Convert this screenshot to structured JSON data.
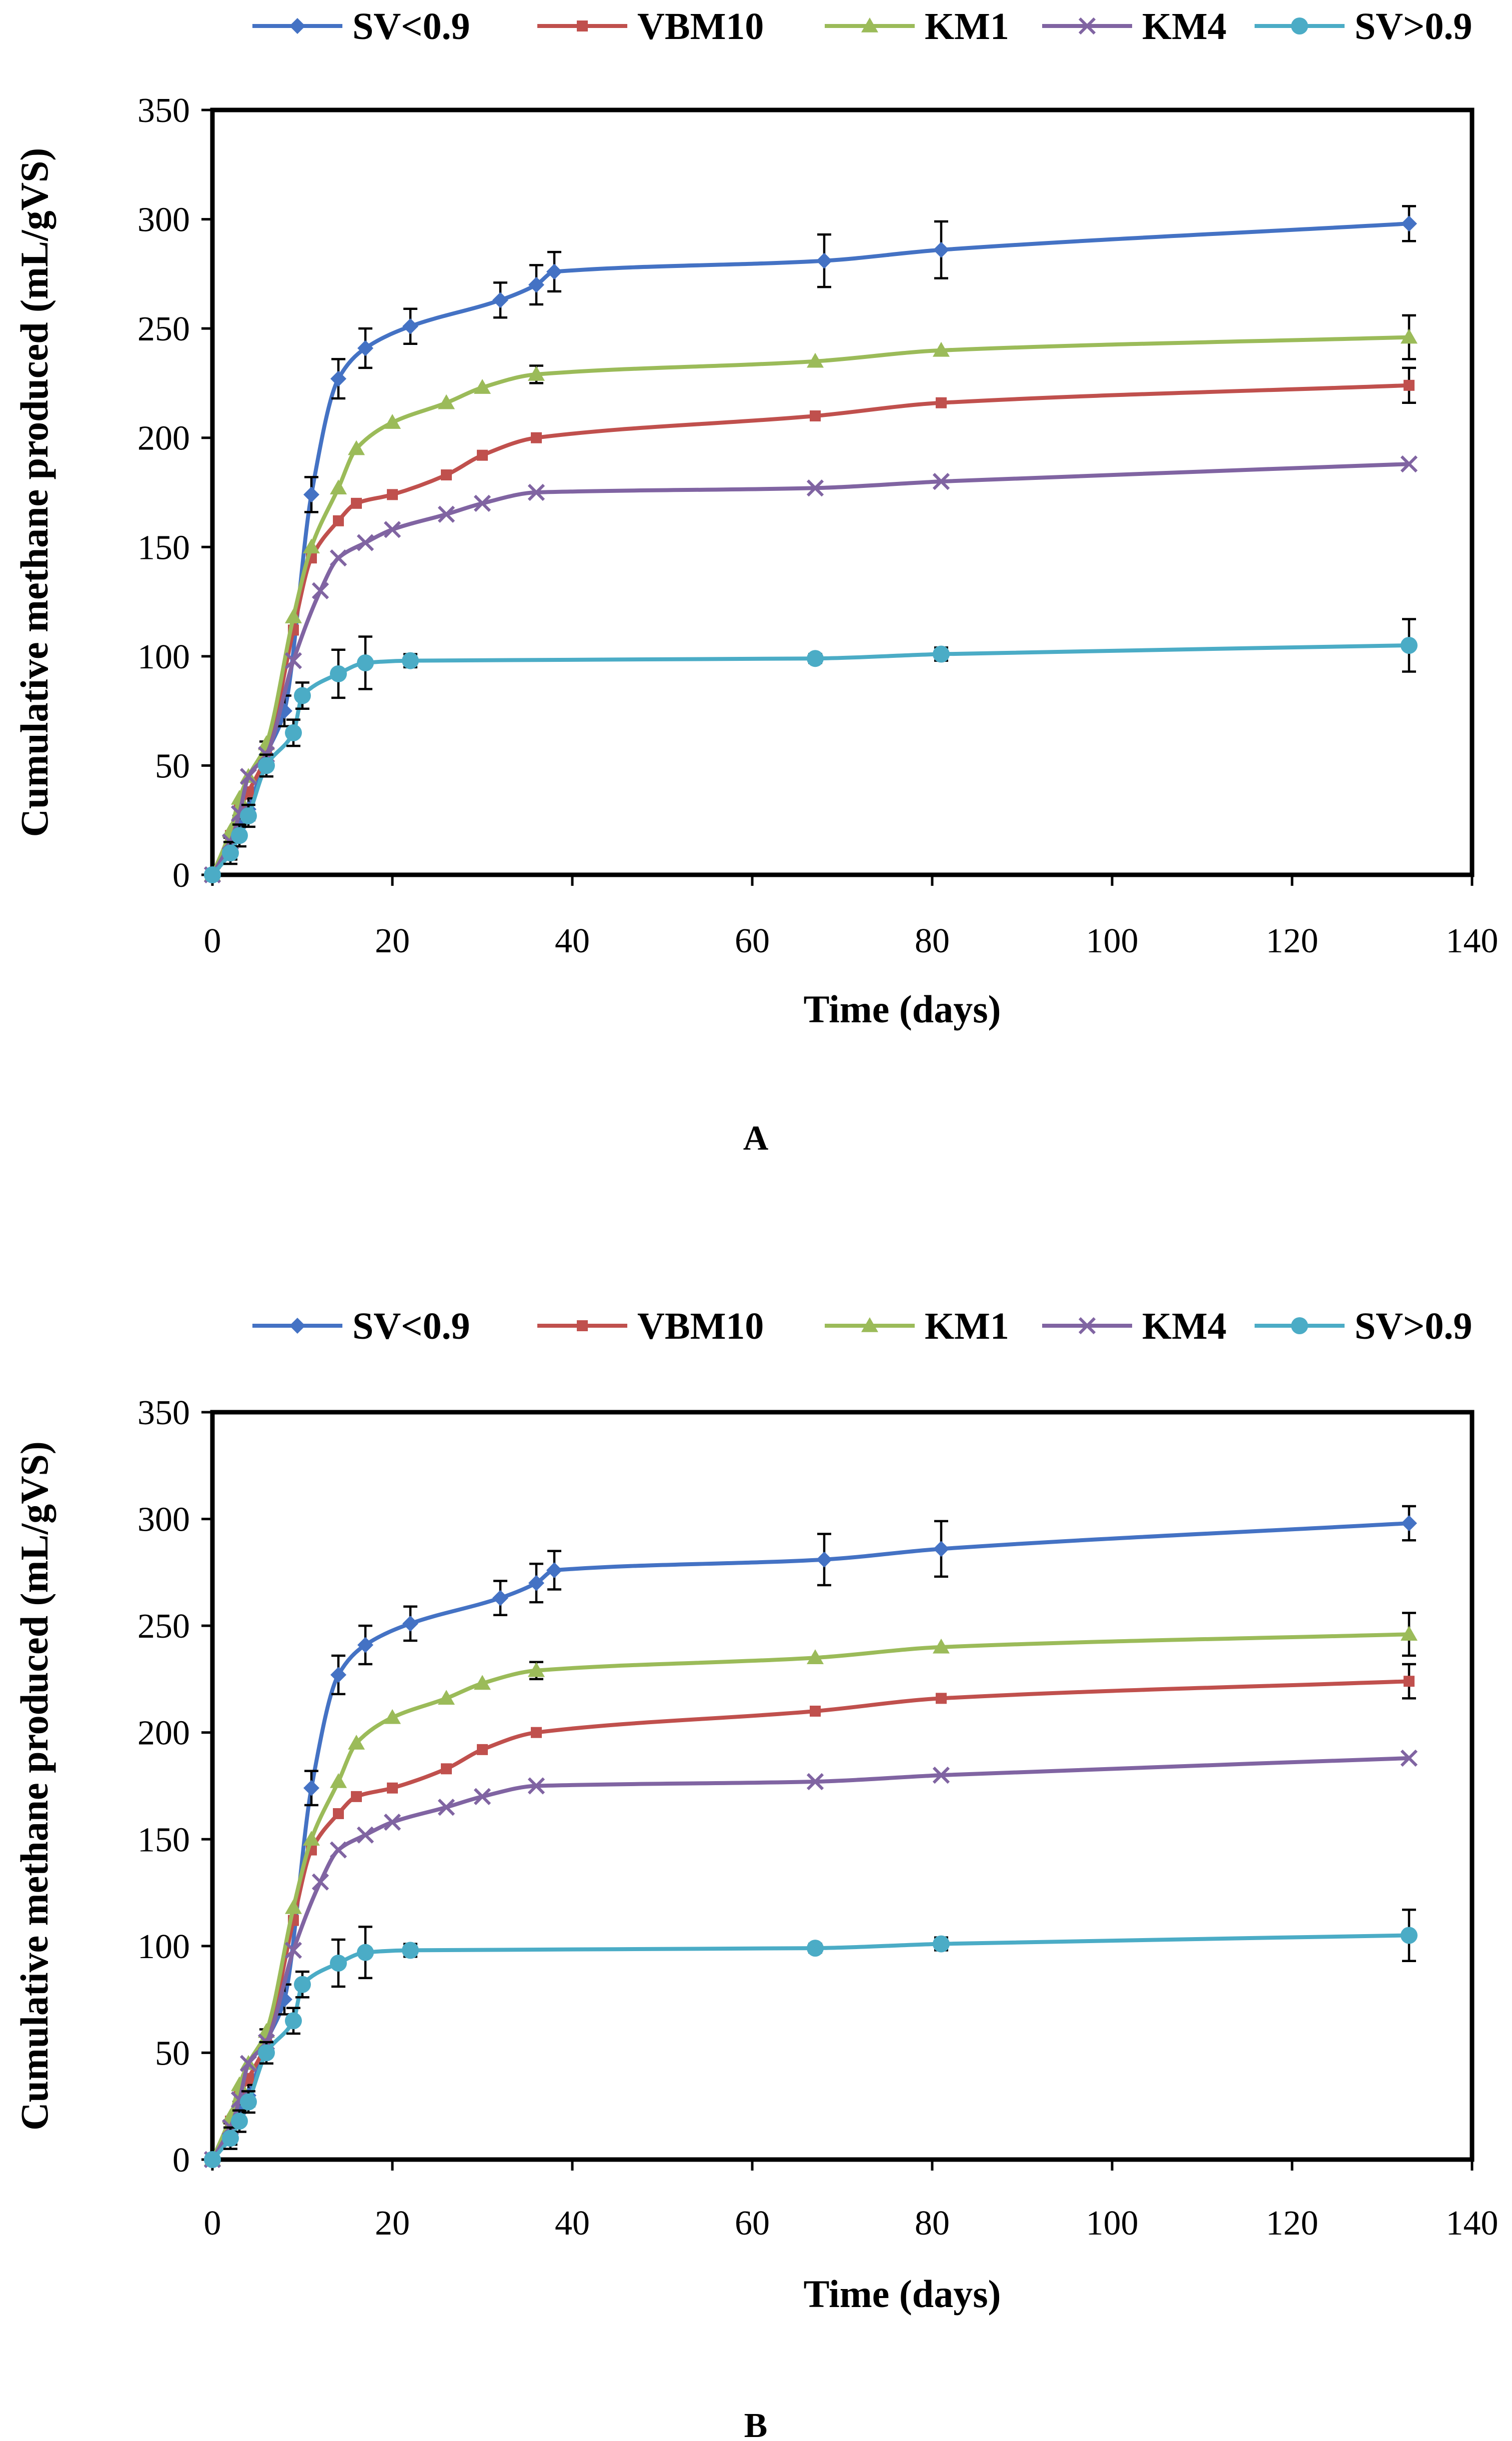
{
  "chart_data": [
    {
      "type": "line",
      "panel_label": "A",
      "title": "",
      "xlabel": "Time (days)",
      "ylabel": "Cumulative methane produced (mL/gVS)",
      "xlim": [
        0,
        140
      ],
      "ylim": [
        0,
        350
      ],
      "xticks": [
        0,
        20,
        40,
        60,
        80,
        100,
        120,
        140
      ],
      "yticks": [
        0,
        50,
        100,
        150,
        200,
        250,
        300,
        350
      ],
      "grid": false,
      "legend_position": "top",
      "series": [
        {
          "name": "SV<0.9",
          "color": "#4472C4",
          "marker": "diamond",
          "x": [
            0,
            2,
            3,
            4,
            6,
            8,
            11,
            14,
            17,
            22,
            32,
            36,
            38,
            68,
            81,
            133
          ],
          "y": [
            0,
            12,
            22,
            30,
            55,
            75,
            174,
            227,
            241,
            251,
            263,
            270,
            276,
            281,
            286,
            298
          ],
          "err": [
            0,
            5,
            5,
            5,
            6,
            7,
            8,
            9,
            9,
            8,
            8,
            9,
            9,
            12,
            13,
            8
          ]
        },
        {
          "name": "VBM10",
          "color": "#C0504D",
          "marker": "square",
          "x": [
            0,
            2,
            3,
            4,
            6,
            9,
            11,
            14,
            16,
            20,
            26,
            30,
            36,
            67,
            81,
            133
          ],
          "y": [
            0,
            18,
            30,
            38,
            55,
            112,
            145,
            162,
            170,
            174,
            183,
            192,
            200,
            210,
            216,
            224
          ],
          "err": [
            0,
            0,
            0,
            0,
            0,
            0,
            0,
            0,
            0,
            0,
            0,
            0,
            0,
            0,
            0,
            8
          ]
        },
        {
          "name": "KM1",
          "color": "#9BBB59",
          "marker": "triangle",
          "x": [
            0,
            2,
            3,
            4,
            6,
            9,
            11,
            14,
            16,
            20,
            26,
            30,
            36,
            67,
            81,
            133
          ],
          "y": [
            0,
            20,
            35,
            45,
            60,
            118,
            150,
            177,
            195,
            207,
            216,
            223,
            229,
            235,
            240,
            246
          ],
          "err": [
            0,
            0,
            0,
            0,
            0,
            0,
            0,
            0,
            0,
            0,
            0,
            0,
            4,
            0,
            0,
            10
          ]
        },
        {
          "name": "KM4",
          "color": "#8064A2",
          "marker": "x",
          "x": [
            0,
            2,
            3,
            4,
            6,
            9,
            12,
            14,
            17,
            20,
            26,
            30,
            36,
            67,
            81,
            133
          ],
          "y": [
            0,
            15,
            28,
            45,
            55,
            98,
            130,
            145,
            152,
            158,
            165,
            170,
            175,
            177,
            180,
            188
          ],
          "err": [
            0,
            0,
            0,
            0,
            0,
            0,
            0,
            0,
            0,
            0,
            0,
            0,
            0,
            0,
            0,
            0
          ]
        },
        {
          "name": "SV>0.9",
          "color": "#4BACC6",
          "marker": "circle",
          "x": [
            0,
            2,
            3,
            4,
            6,
            9,
            10,
            14,
            17,
            22,
            67,
            81,
            133
          ],
          "y": [
            0,
            10,
            18,
            27,
            50,
            65,
            82,
            92,
            97,
            98,
            99,
            101,
            105
          ],
          "err": [
            0,
            5,
            5,
            5,
            5,
            6,
            6,
            11,
            12,
            3,
            2,
            3,
            12
          ]
        }
      ]
    },
    {
      "type": "line",
      "panel_label": "B",
      "title": "",
      "xlabel": "Time (days)",
      "ylabel": "Cumulative methane produced (mL/gVS)",
      "xlim": [
        0,
        140
      ],
      "ylim": [
        0,
        350
      ],
      "xticks": [
        0,
        20,
        40,
        60,
        80,
        100,
        120,
        140
      ],
      "yticks": [
        0,
        50,
        100,
        150,
        200,
        250,
        300,
        350
      ],
      "grid": false,
      "legend_position": "top",
      "series": [
        {
          "name": "SV<0.9",
          "color": "#4472C4",
          "marker": "diamond",
          "x": [
            0,
            2,
            3,
            4,
            6,
            8,
            11,
            14,
            17,
            22,
            32,
            36,
            38,
            68,
            81,
            133
          ],
          "y": [
            0,
            12,
            22,
            30,
            55,
            75,
            174,
            227,
            241,
            251,
            263,
            270,
            276,
            281,
            286,
            298
          ],
          "err": [
            0,
            5,
            5,
            5,
            6,
            7,
            8,
            9,
            9,
            8,
            8,
            9,
            9,
            12,
            13,
            8
          ]
        },
        {
          "name": "VBM10",
          "color": "#C0504D",
          "marker": "square",
          "x": [
            0,
            2,
            3,
            4,
            6,
            9,
            11,
            14,
            16,
            20,
            26,
            30,
            36,
            67,
            81,
            133
          ],
          "y": [
            0,
            18,
            30,
            38,
            55,
            112,
            145,
            162,
            170,
            174,
            183,
            192,
            200,
            210,
            216,
            224
          ],
          "err": [
            0,
            0,
            0,
            0,
            0,
            0,
            0,
            0,
            0,
            0,
            0,
            0,
            0,
            0,
            0,
            8
          ]
        },
        {
          "name": "KM1",
          "color": "#9BBB59",
          "marker": "triangle",
          "x": [
            0,
            2,
            3,
            4,
            6,
            9,
            11,
            14,
            16,
            20,
            26,
            30,
            36,
            67,
            81,
            133
          ],
          "y": [
            0,
            20,
            35,
            45,
            60,
            118,
            150,
            177,
            195,
            207,
            216,
            223,
            229,
            235,
            240,
            246
          ],
          "err": [
            0,
            0,
            0,
            0,
            0,
            0,
            0,
            0,
            0,
            0,
            0,
            0,
            4,
            0,
            0,
            10
          ]
        },
        {
          "name": "KM4",
          "color": "#8064A2",
          "marker": "x",
          "x": [
            0,
            2,
            3,
            4,
            6,
            9,
            12,
            14,
            17,
            20,
            26,
            30,
            36,
            67,
            81,
            133
          ],
          "y": [
            0,
            15,
            28,
            45,
            55,
            98,
            130,
            145,
            152,
            158,
            165,
            170,
            175,
            177,
            180,
            188
          ],
          "err": [
            0,
            0,
            0,
            0,
            0,
            0,
            0,
            0,
            0,
            0,
            0,
            0,
            0,
            0,
            0,
            0
          ]
        },
        {
          "name": "SV>0.9",
          "color": "#4BACC6",
          "marker": "circle",
          "x": [
            0,
            2,
            3,
            4,
            6,
            9,
            10,
            14,
            17,
            22,
            67,
            81,
            133
          ],
          "y": [
            0,
            10,
            18,
            27,
            50,
            65,
            82,
            92,
            97,
            98,
            99,
            101,
            105
          ],
          "err": [
            0,
            5,
            5,
            5,
            5,
            6,
            6,
            11,
            12,
            3,
            2,
            3,
            12
          ]
        }
      ]
    }
  ]
}
